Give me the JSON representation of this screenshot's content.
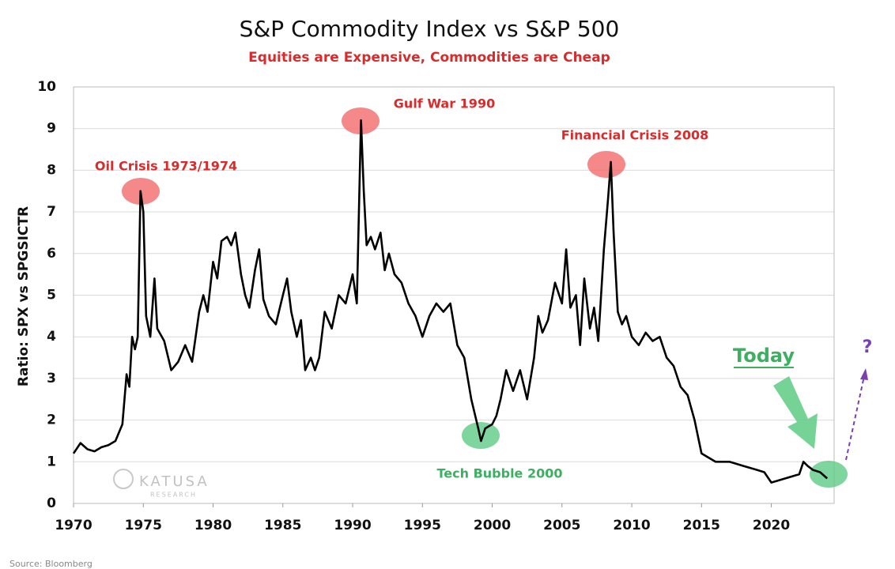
{
  "chart_data": {
    "type": "line",
    "title": "S&P Commodity Index vs S&P 500",
    "subtitle": "Equities are Expensive, Commodities are Cheap",
    "y_label": "Ratio: SPX vs SPGSICTR",
    "source": "Source: Bloomberg",
    "logo": {
      "name": "KATUSA",
      "sub": "RESEARCH"
    },
    "annotations": [
      {
        "text": "Oil Crisis 1973/1974",
        "color": "#d92b2b"
      },
      {
        "text": "Gulf War 1990",
        "color": "#d92b2b"
      },
      {
        "text": "Financial Crisis 2008",
        "color": "#d92b2b"
      },
      {
        "text": "Tech Bubble 2000",
        "color": "#3cb060"
      },
      {
        "text": "Today",
        "color": "#3cb060"
      },
      {
        "text": "?",
        "color": "#7a3fb0"
      }
    ],
    "xlim": [
      1970,
      2024.5
    ],
    "xticks": [
      1970,
      1975,
      1980,
      1985,
      1990,
      1995,
      2000,
      2005,
      2010,
      2015,
      2020
    ],
    "ylim": [
      0,
      10
    ],
    "yticks": [
      0,
      1,
      2,
      3,
      4,
      5,
      6,
      7,
      8,
      9,
      10
    ],
    "grid": true,
    "series": [
      {
        "name": "SPX / SPGSICTR",
        "color": "#000000",
        "x": [
          1970,
          1970.5,
          1971,
          1971.5,
          1972,
          1972.5,
          1973,
          1973.5,
          1973.8,
          1974,
          1974.2,
          1974.4,
          1974.6,
          1974.8,
          1975,
          1975.2,
          1975.5,
          1975.8,
          1976,
          1976.5,
          1977,
          1977.5,
          1978,
          1978.5,
          1979,
          1979.3,
          1979.6,
          1980,
          1980.3,
          1980.6,
          1981,
          1981.3,
          1981.6,
          1982,
          1982.3,
          1982.6,
          1983,
          1983.3,
          1983.6,
          1984,
          1984.5,
          1985,
          1985.3,
          1985.6,
          1986,
          1986.3,
          1986.6,
          1987,
          1987.3,
          1987.6,
          1988,
          1988.5,
          1989,
          1989.5,
          1990,
          1990.3,
          1990.6,
          1990.8,
          1991,
          1991.3,
          1991.6,
          1992,
          1992.3,
          1992.6,
          1993,
          1993.5,
          1994,
          1994.5,
          1995,
          1995.5,
          1996,
          1996.5,
          1997,
          1997.5,
          1998,
          1998.5,
          1999,
          1999.2,
          1999.5,
          2000,
          2000.3,
          2000.6,
          2001,
          2001.5,
          2002,
          2002.5,
          2003,
          2003.3,
          2003.6,
          2004,
          2004.5,
          2005,
          2005.3,
          2005.6,
          2006,
          2006.3,
          2006.6,
          2007,
          2007.3,
          2007.6,
          2008,
          2008.3,
          2008.5,
          2008.7,
          2009,
          2009.3,
          2009.6,
          2010,
          2010.5,
          2011,
          2011.5,
          2012,
          2012.5,
          2013,
          2013.5,
          2014,
          2014.5,
          2015,
          2015.5,
          2016,
          2017,
          2018,
          2019,
          2019.5,
          2020,
          2020.5,
          2021,
          2021.5,
          2022,
          2022.3,
          2022.6,
          2023,
          2023.5,
          2024
        ],
        "values": [
          1.2,
          1.45,
          1.3,
          1.25,
          1.35,
          1.4,
          1.5,
          1.9,
          3.1,
          2.8,
          4.0,
          3.7,
          4.0,
          7.5,
          7.0,
          4.5,
          4.0,
          5.4,
          4.2,
          3.9,
          3.2,
          3.4,
          3.8,
          3.4,
          4.6,
          5.0,
          4.6,
          5.8,
          5.4,
          6.3,
          6.4,
          6.2,
          6.5,
          5.5,
          5.0,
          4.7,
          5.6,
          6.1,
          4.9,
          4.5,
          4.3,
          5.0,
          5.4,
          4.6,
          4.0,
          4.4,
          3.2,
          3.5,
          3.2,
          3.5,
          4.6,
          4.2,
          5.0,
          4.8,
          5.5,
          4.8,
          9.2,
          7.5,
          6.2,
          6.4,
          6.1,
          6.5,
          5.6,
          6.0,
          5.5,
          5.3,
          4.8,
          4.5,
          4.0,
          4.5,
          4.8,
          4.6,
          4.8,
          3.8,
          3.5,
          2.5,
          1.8,
          1.5,
          1.8,
          1.9,
          2.1,
          2.5,
          3.2,
          2.7,
          3.2,
          2.5,
          3.5,
          4.5,
          4.1,
          4.4,
          5.3,
          4.8,
          6.1,
          4.7,
          5.0,
          3.8,
          5.4,
          4.2,
          4.7,
          3.9,
          6.1,
          7.3,
          8.2,
          6.5,
          4.6,
          4.3,
          4.5,
          4.0,
          3.8,
          4.1,
          3.9,
          4.0,
          3.5,
          3.3,
          2.8,
          2.6,
          2.0,
          1.2,
          1.1,
          1.0,
          1.0,
          0.9,
          0.8,
          0.75,
          0.5,
          0.55,
          0.6,
          0.65,
          0.7,
          1.0,
          0.9,
          0.8,
          0.75,
          0.6
        ]
      }
    ]
  }
}
